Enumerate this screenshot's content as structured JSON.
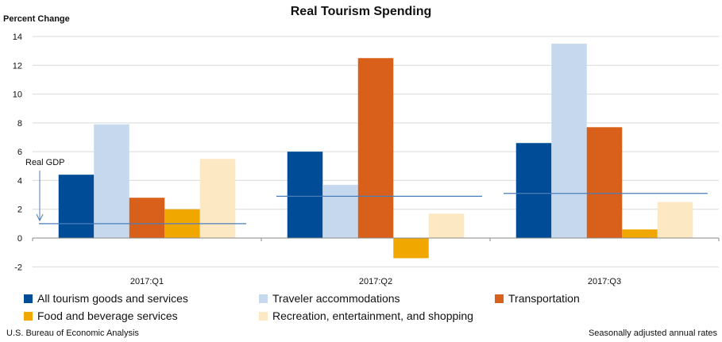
{
  "chart_data": {
    "type": "bar",
    "title": "Real Tourism Spending",
    "ylabel": "Percent Change",
    "xlabel": "",
    "ylim": [
      -2,
      14
    ],
    "yticks": [
      -2,
      0,
      2,
      4,
      6,
      8,
      10,
      12,
      14
    ],
    "grid": true,
    "legend_placement": "bottom",
    "categories": [
      "2017:Q1",
      "2017:Q2",
      "2017:Q3"
    ],
    "series": [
      {
        "name": "All tourism goods and services",
        "color": "#004c97",
        "values": [
          4.4,
          6.0,
          6.6
        ]
      },
      {
        "name": "Traveler accommodations",
        "color": "#c5d8ee",
        "values": [
          7.9,
          3.7,
          13.5
        ]
      },
      {
        "name": "Transportation",
        "color": "#d9601a",
        "values": [
          2.8,
          12.5,
          7.7
        ]
      },
      {
        "name": "Food and beverage services",
        "color": "#f0a800",
        "values": [
          2.0,
          -1.4,
          0.6
        ]
      },
      {
        "name": "Recreation, entertainment, and shopping",
        "color": "#fde8c4",
        "values": [
          5.5,
          1.7,
          2.5
        ]
      }
    ],
    "reference_line": {
      "name": "Real GDP",
      "color": "#4a7ebb",
      "values": [
        1.0,
        2.9,
        3.1
      ]
    }
  },
  "footer": {
    "source": "U.S. Bureau of Economic Analysis",
    "note": "Seasonally adjusted annual rates"
  }
}
